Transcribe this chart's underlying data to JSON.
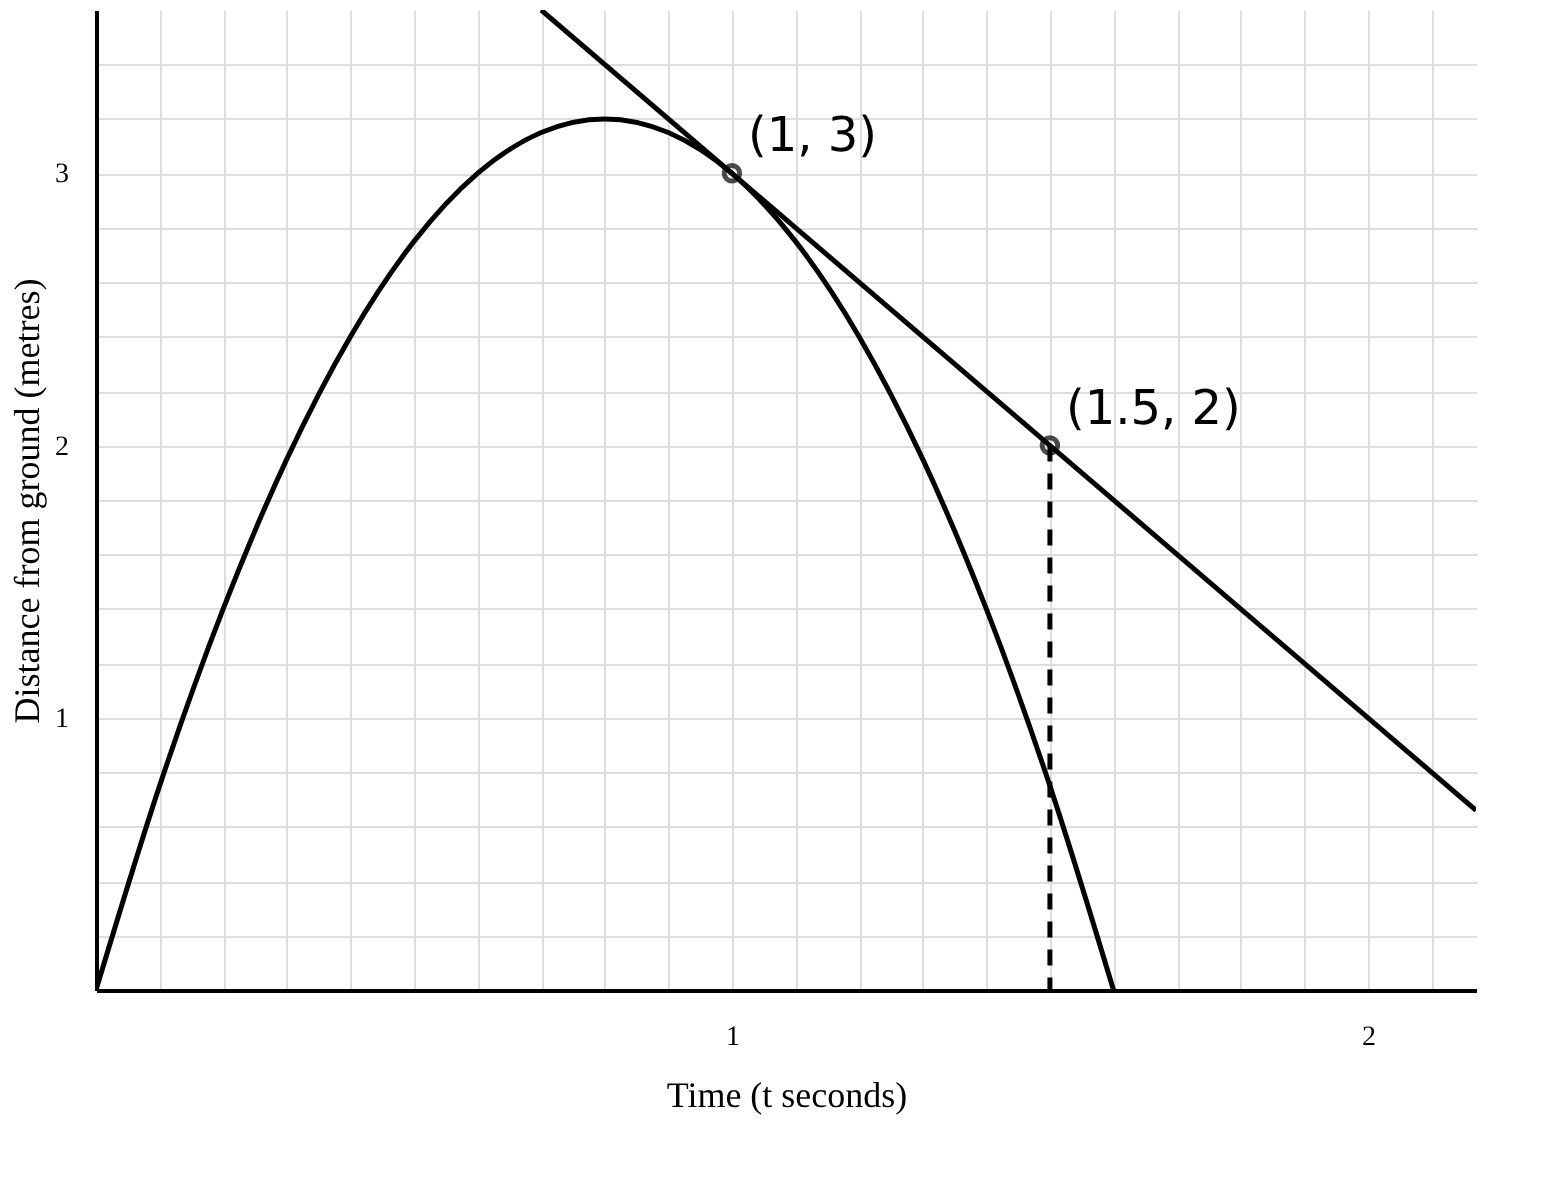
{
  "chart_data": {
    "type": "line",
    "xlabel": "Time (t seconds)",
    "ylabel": "Distance from ground (metres)",
    "series": [
      {
        "type": "line",
        "color": "#000000",
        "line_style": "solid",
        "marker": "none",
        "x": [
          0,
          0.1,
          0.2,
          0.3,
          0.4,
          0.5,
          0.6,
          0.7,
          0.8,
          0.9,
          1,
          1.1,
          1.2,
          1.3,
          1.4,
          1.5,
          1.6
        ],
        "values": [
          0,
          0.75,
          1.4,
          1.95,
          2.4,
          2.75,
          3,
          3.15,
          3.2,
          3.15,
          3,
          2.75,
          2.4,
          1.95,
          1.4,
          0.75,
          0
        ]
      },
      {
        "type": "line",
        "color": "#000000",
        "line_style": "solid",
        "marker": "none",
        "x": [
          0.7,
          2.17
        ],
        "values": [
          3.6,
          0.66
        ]
      },
      {
        "type": "line",
        "color": "#000000",
        "line_style": "dashed",
        "marker": "none",
        "x": [
          1.5,
          1.5
        ],
        "values": [
          2,
          0
        ]
      },
      {
        "type": "scatter",
        "color": "#000000",
        "marker": "circle",
        "x": [
          1,
          1.5
        ],
        "values": [
          3,
          2
        ]
      }
    ],
    "annotations": [
      {
        "text": "(1, 3)",
        "x": 1,
        "y": 3
      },
      {
        "text": "(1.5, 2)",
        "x": 1.5,
        "y": 2
      }
    ],
    "xlim": [
      0,
      2.17
    ],
    "ylim": [
      0,
      3.6
    ],
    "xticks": [
      {
        "value": 0.1,
        "label": null
      },
      {
        "value": 0.2,
        "label": null
      },
      {
        "value": 0.3,
        "label": null
      },
      {
        "value": 0.4,
        "label": null
      },
      {
        "value": 0.5,
        "label": null
      },
      {
        "value": 0.6,
        "label": null
      },
      {
        "value": 0.7,
        "label": null
      },
      {
        "value": 0.8,
        "label": null
      },
      {
        "value": 0.9,
        "label": null
      },
      1,
      {
        "value": 1.1,
        "label": null
      },
      {
        "value": 1.2,
        "label": null
      },
      {
        "value": 1.3,
        "label": null
      },
      {
        "value": 1.4,
        "label": null
      },
      {
        "value": 1.5,
        "label": null
      },
      {
        "value": 1.6,
        "label": null
      },
      {
        "value": 1.7,
        "label": null
      },
      {
        "value": 1.8,
        "label": null
      },
      {
        "value": 1.9,
        "label": null
      },
      2,
      {
        "value": 2.1,
        "label": null
      }
    ],
    "yticks": [
      {
        "value": 0.2,
        "label": null
      },
      {
        "value": 0.4,
        "label": null
      },
      {
        "value": 0.6,
        "label": null
      },
      {
        "value": 0.8,
        "label": null
      },
      1,
      {
        "value": 1.2,
        "label": null
      },
      {
        "value": 1.4,
        "label": null
      },
      {
        "value": 1.6,
        "label": null
      },
      {
        "value": 1.8,
        "label": null
      },
      2,
      {
        "value": 2.2,
        "label": null
      },
      {
        "value": 2.4,
        "label": null
      },
      {
        "value": 2.6,
        "label": null
      },
      {
        "value": 2.8,
        "label": null
      },
      3,
      {
        "value": 3.2,
        "label": null
      },
      {
        "value": 3.4,
        "label": null
      }
    ],
    "grid": true
  }
}
